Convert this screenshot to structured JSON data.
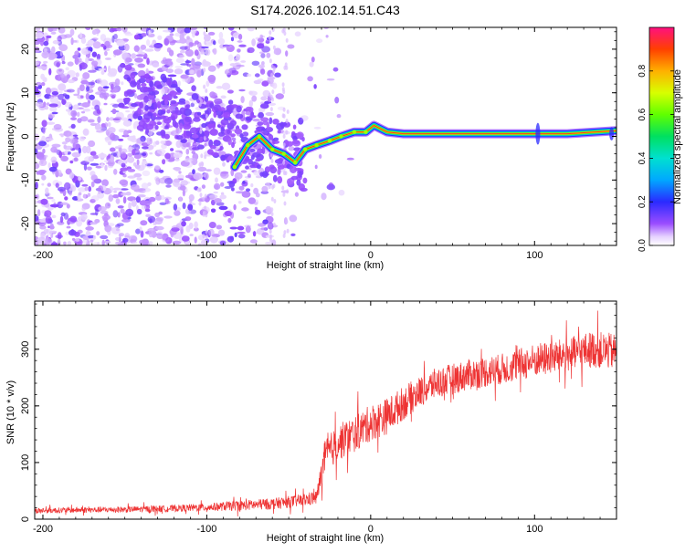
{
  "title": "S174.2026.102.14.51.C43",
  "chart_data": [
    {
      "type": "heatmap",
      "name": "spectrogram",
      "xlabel": "Height of straight line (km)",
      "ylabel": "Frequency (Hz)",
      "xlim": [
        -205,
        150
      ],
      "ylim": [
        -25,
        25
      ],
      "xticks": [
        -200,
        -100,
        0,
        100
      ],
      "yticks": [
        -20,
        -10,
        0,
        10,
        20
      ],
      "colorbar": {
        "label": "Normalized spectral amplitude",
        "range": [
          0,
          1
        ],
        "ticks": [
          0.0,
          0.2,
          0.4,
          0.6,
          0.8
        ]
      },
      "carrier_trace": [
        {
          "x": -83,
          "y": -7
        },
        {
          "x": -75,
          "y": -2
        },
        {
          "x": -68,
          "y": 0
        },
        {
          "x": -60,
          "y": -3
        },
        {
          "x": -53,
          "y": -4
        },
        {
          "x": -46,
          "y": -6
        },
        {
          "x": -40,
          "y": -3
        },
        {
          "x": -33,
          "y": -2
        },
        {
          "x": -25,
          "y": -1
        },
        {
          "x": -18,
          "y": 0
        },
        {
          "x": -10,
          "y": 1
        },
        {
          "x": -3,
          "y": 1
        },
        {
          "x": 2,
          "y": 2.5
        },
        {
          "x": 10,
          "y": 1
        },
        {
          "x": 20,
          "y": 0.6
        },
        {
          "x": 40,
          "y": 0.6
        },
        {
          "x": 80,
          "y": 0.6
        },
        {
          "x": 100,
          "y": 0.6
        },
        {
          "x": 120,
          "y": 0.6
        },
        {
          "x": 150,
          "y": 1.3
        }
      ]
    },
    {
      "type": "line",
      "name": "snr",
      "xlabel": "Height of straight line (km)",
      "ylabel": "SNR (10 * v/v)",
      "xlim": [
        -205,
        150
      ],
      "ylim": [
        0,
        385
      ],
      "xticks": [
        -200,
        -100,
        0,
        100
      ],
      "yticks": [
        0,
        100,
        200,
        300
      ],
      "series": [
        {
          "name": "SNR",
          "color": "#ee3333",
          "x": [
            -205,
            -180,
            -150,
            -120,
            -100,
            -80,
            -60,
            -45,
            -33,
            -28,
            -20,
            -10,
            0,
            10,
            20,
            30,
            40,
            60,
            80,
            100,
            120,
            135,
            150
          ],
          "mean": [
            15,
            16,
            17,
            19,
            21,
            24,
            27,
            32,
            38,
            110,
            135,
            150,
            170,
            182,
            205,
            225,
            240,
            255,
            265,
            280,
            290,
            300,
            295
          ],
          "spread": [
            10,
            10,
            11,
            12,
            14,
            18,
            20,
            22,
            25,
            60,
            65,
            65,
            65,
            65,
            60,
            55,
            55,
            55,
            55,
            60,
            60,
            65,
            65
          ]
        }
      ]
    }
  ]
}
